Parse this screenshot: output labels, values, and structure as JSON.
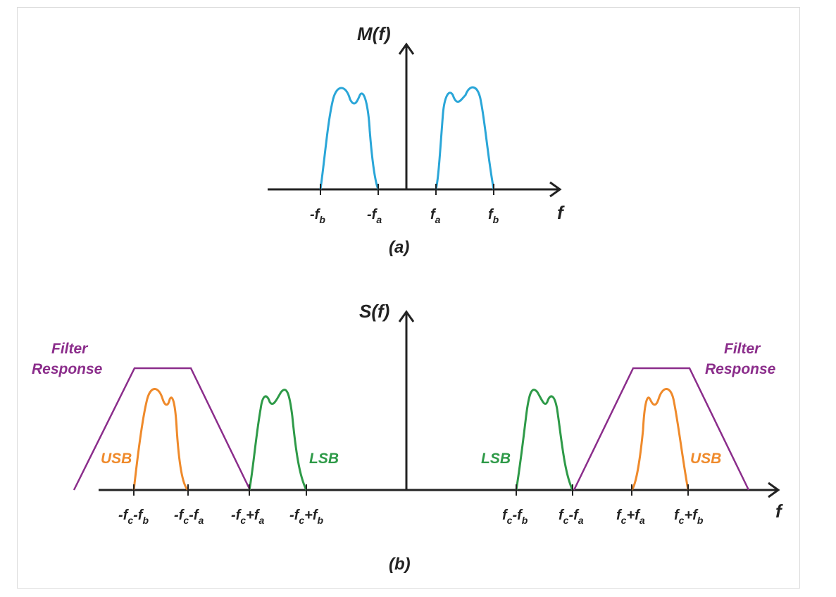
{
  "colors": {
    "axis": "#222222",
    "message_spectrum": "#2aa6d8",
    "filter": "#8b2d8b",
    "usb": "#ef8a2b",
    "lsb": "#2e9a48"
  },
  "plot_a": {
    "y_label": "M(f)",
    "x_label": "f",
    "caption": "(a)",
    "ticks": {
      "neg_fb": {
        "pre": "-f",
        "sub": "b"
      },
      "neg_fa": {
        "pre": "-f",
        "sub": "a"
      },
      "fa": {
        "pre": "f",
        "sub": "a"
      },
      "fb": {
        "pre": "f",
        "sub": "b"
      }
    }
  },
  "plot_b": {
    "y_label": "S(f)",
    "x_label": "f",
    "caption": "(b)",
    "filter_label_left": {
      "line1": "Filter",
      "line2": "Response"
    },
    "filter_label_right": {
      "line1": "Filter",
      "line2": "Response"
    },
    "usb_label": "USB",
    "lsb_label": "LSB",
    "ticks": {
      "t1": {
        "p1": "-f",
        "s1": "c",
        "p2": "-f",
        "s2": "b"
      },
      "t2": {
        "p1": "-f",
        "s1": "c",
        "p2": "-f",
        "s2": "a"
      },
      "t3": {
        "p1": "-f",
        "s1": "c",
        "p2": "+f",
        "s2": "a"
      },
      "t4": {
        "p1": "-f",
        "s1": "c",
        "p2": "+f",
        "s2": "b"
      },
      "t5": {
        "p1": "f",
        "s1": "c",
        "p2": "-f",
        "s2": "b"
      },
      "t6": {
        "p1": "f",
        "s1": "c",
        "p2": "-f",
        "s2": "a"
      },
      "t7": {
        "p1": "f",
        "s1": "c",
        "p2": "+f",
        "s2": "a"
      },
      "t8": {
        "p1": "f",
        "s1": "c",
        "p2": "+f",
        "s2": "b"
      }
    }
  }
}
